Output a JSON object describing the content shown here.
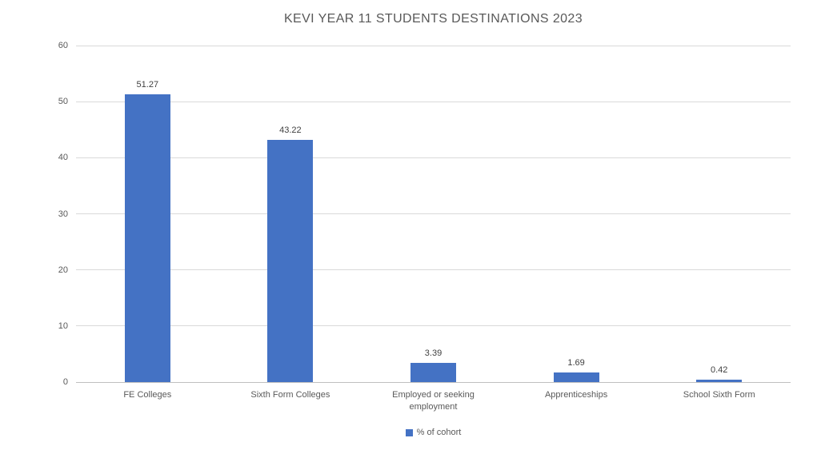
{
  "chart_data": {
    "type": "bar",
    "title": "KEVI YEAR 11 STUDENTS DESTINATIONS 2023",
    "categories": [
      "FE Colleges",
      "Sixth Form Colleges",
      "Employed or seeking employment",
      "Apprenticeships",
      "School Sixth Form"
    ],
    "series": [
      {
        "name": "% of cohort",
        "values": [
          51.27,
          43.22,
          3.39,
          1.69,
          0.42
        ]
      }
    ],
    "data_labels": [
      "51.27",
      "43.22",
      "3.39",
      "1.69",
      "0.42"
    ],
    "xlabel": "",
    "ylabel": "",
    "ylim": [
      0,
      60
    ],
    "yticks": [
      0,
      10,
      20,
      30,
      40,
      50,
      60
    ],
    "grid": true,
    "legend_position": "bottom",
    "colors": {
      "bar": "#4472C4",
      "title_text": "#595959",
      "axis_text": "#595959",
      "data_label_text": "#404040",
      "gridline": "#D9D9D9",
      "axis_line": "#BFBFBF",
      "background": "#FFFFFF"
    }
  }
}
